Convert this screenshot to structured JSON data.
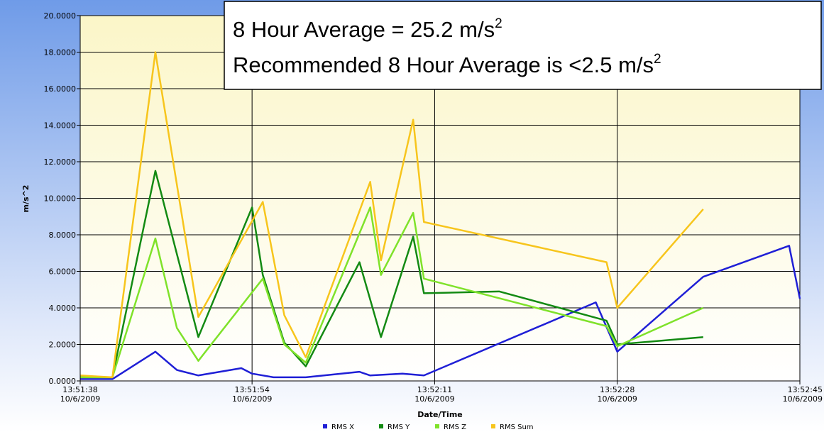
{
  "chart_data": {
    "type": "line",
    "xlabel": "Date/Time",
    "ylabel": "m/s^2",
    "annotations": [
      {
        "text": "8 Hour Average = 25.2 m/s",
        "superscript": "2"
      },
      {
        "text": "Recommended 8 Hour Average is <2.5 m/s",
        "superscript": "2"
      }
    ],
    "xlim": [
      "13:51:38",
      "13:52:45"
    ],
    "xticks": [
      {
        "value": "13:51:38",
        "label": [
          "13:51:38",
          "10/6/2009"
        ]
      },
      {
        "value": "13:51:54",
        "label": [
          "13:51:54",
          "10/6/2009"
        ]
      },
      {
        "value": "13:52:11",
        "label": [
          "13:52:11",
          "10/6/2009"
        ]
      },
      {
        "value": "13:52:28",
        "label": [
          "13:52:28",
          "10/6/2009"
        ]
      },
      {
        "value": "13:52:45",
        "label": [
          "13:52:45",
          "10/6/2009"
        ]
      }
    ],
    "ylim": [
      0,
      20
    ],
    "yticks": [
      {
        "value": 0,
        "label": "0.0000"
      },
      {
        "value": 2,
        "label": "2.0000"
      },
      {
        "value": 4,
        "label": "4.0000"
      },
      {
        "value": 6,
        "label": "6.0000"
      },
      {
        "value": 8,
        "label": "8.0000"
      },
      {
        "value": 10,
        "label": "10.0000"
      },
      {
        "value": 12,
        "label": "12.0000"
      },
      {
        "value": 14,
        "label": "14.0000"
      },
      {
        "value": 16,
        "label": "16.0000"
      },
      {
        "value": 18,
        "label": "18.0000"
      },
      {
        "value": 20,
        "label": "20.0000"
      }
    ],
    "grid": true,
    "legend": "bottom",
    "series": [
      {
        "name": "RMS X",
        "color": "#1f1fd6",
        "x": [
          "13:51:38",
          "13:51:41",
          "13:51:45",
          "13:51:47",
          "13:51:49",
          "13:51:53",
          "13:51:54",
          "13:51:56",
          "13:51:59",
          "13:52:04",
          "13:52:05",
          "13:52:08",
          "13:52:10",
          "13:52:26",
          "13:52:28",
          "13:52:36",
          "13:52:44",
          "13:52:45"
        ],
        "values": [
          0.1,
          0.1,
          1.6,
          0.6,
          0.3,
          0.7,
          0.4,
          0.2,
          0.2,
          0.5,
          0.3,
          0.4,
          0.3,
          4.3,
          1.6,
          5.7,
          7.4,
          4.5
        ]
      },
      {
        "name": "RMS Y",
        "color": "#138a13",
        "x": [
          "13:51:38",
          "13:51:41",
          "13:51:45",
          "13:51:49",
          "13:51:54",
          "13:51:55",
          "13:51:57",
          "13:51:59",
          "13:52:04",
          "13:52:06",
          "13:52:09",
          "13:52:10",
          "13:52:17",
          "13:52:27",
          "13:52:28",
          "13:52:36"
        ],
        "values": [
          0.2,
          0.2,
          11.5,
          2.4,
          9.5,
          5.8,
          2.1,
          0.8,
          6.5,
          2.4,
          7.9,
          4.8,
          4.9,
          3.3,
          2.0,
          2.4
        ]
      },
      {
        "name": "RMS Z",
        "color": "#7fe22a",
        "x": [
          "13:51:38",
          "13:51:41",
          "13:51:45",
          "13:51:47",
          "13:51:49",
          "13:51:55",
          "13:51:57",
          "13:51:59",
          "13:52:05",
          "13:52:06",
          "13:52:09",
          "13:52:10",
          "13:52:27",
          "13:52:28",
          "13:52:36"
        ],
        "values": [
          0.2,
          0.2,
          7.8,
          2.9,
          1.1,
          5.6,
          2.0,
          1.0,
          9.5,
          5.8,
          9.2,
          5.6,
          3.0,
          1.9,
          4.0
        ]
      },
      {
        "name": "RMS Sum",
        "color": "#f7c51c",
        "x": [
          "13:51:38",
          "13:51:41",
          "13:51:45",
          "13:51:49",
          "13:51:55",
          "13:51:57",
          "13:51:59",
          "13:52:05",
          "13:52:06",
          "13:52:09",
          "13:52:10",
          "13:52:27",
          "13:52:28",
          "13:52:36"
        ],
        "values": [
          0.3,
          0.2,
          18.0,
          3.5,
          9.8,
          3.6,
          1.3,
          10.9,
          6.6,
          14.3,
          8.7,
          6.5,
          4.0,
          9.4
        ]
      }
    ]
  }
}
